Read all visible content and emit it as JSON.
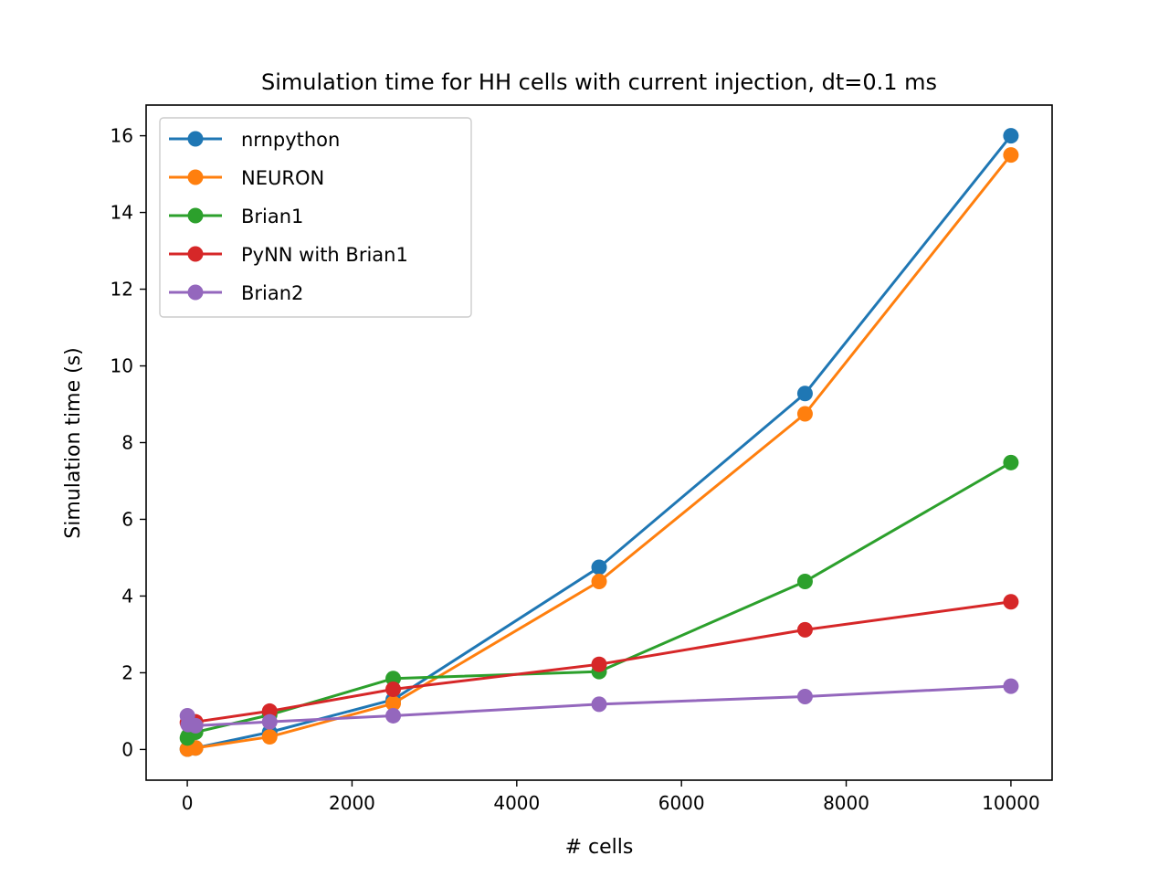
{
  "chart_data": {
    "type": "line",
    "title": "Simulation time for HH cells with current injection, dt=0.1 ms",
    "xlabel": "# cells",
    "ylabel": "Simulation time (s)",
    "xlim": [
      -500,
      10500
    ],
    "ylim": [
      -0.8,
      16.8
    ],
    "xticks": [
      0,
      2000,
      4000,
      6000,
      8000,
      10000
    ],
    "yticks": [
      0,
      2,
      4,
      6,
      8,
      10,
      12,
      14,
      16
    ],
    "grid": false,
    "legend_position": "upper-left",
    "series": [
      {
        "name": "nrnpython",
        "color": "#1f77b4",
        "x": [
          1,
          10,
          100,
          1000,
          2500,
          5000,
          7500,
          10000
        ],
        "y": [
          0.01,
          0.02,
          0.04,
          0.45,
          1.3,
          4.75,
          9.28,
          16.0
        ]
      },
      {
        "name": "NEURON",
        "color": "#ff7f0e",
        "x": [
          1,
          10,
          100,
          1000,
          2500,
          5000,
          7500,
          10000
        ],
        "y": [
          0.01,
          0.02,
          0.04,
          0.33,
          1.2,
          4.38,
          8.75,
          15.5
        ]
      },
      {
        "name": "Brian1",
        "color": "#2ca02c",
        "x": [
          1,
          10,
          100,
          1000,
          2500,
          5000,
          7500,
          10000
        ],
        "y": [
          0.3,
          0.35,
          0.45,
          0.9,
          1.85,
          2.03,
          4.38,
          7.48
        ]
      },
      {
        "name": "PyNN with Brian1",
        "color": "#d62728",
        "x": [
          1,
          10,
          100,
          1000,
          2500,
          5000,
          7500,
          10000
        ],
        "y": [
          0.7,
          0.7,
          0.72,
          1.0,
          1.57,
          2.22,
          3.12,
          3.85
        ]
      },
      {
        "name": "Brian2",
        "color": "#9467bd",
        "x": [
          1,
          10,
          100,
          1000,
          2500,
          5000,
          7500,
          10000
        ],
        "y": [
          0.88,
          0.65,
          0.62,
          0.72,
          0.88,
          1.18,
          1.38,
          1.65
        ]
      }
    ]
  }
}
